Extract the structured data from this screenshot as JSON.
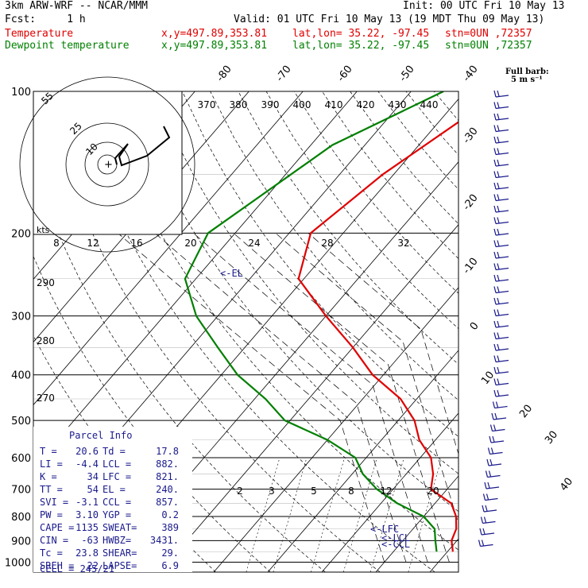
{
  "header": {
    "model": "3km ARW-WRF -- NCAR/MMM",
    "init": "Init: 00 UTC Fri 10 May 13",
    "fcst": "Fcst:     1 h",
    "valid": "Valid: 01 UTC Fri 10 May 13 (19 MDT Thu 09 May 13)",
    "temp_label": "Temperature",
    "dew_label": "Dewpoint temperature",
    "xy": "x,y=497.89,353.81",
    "latlon": "lat,lon= 35.22, -97.45",
    "stn": "stn=0UN ,72357"
  },
  "barb_legend": {
    "line1": "Full barb:",
    "line2": "5 m s⁻¹"
  },
  "parcel_info": {
    "title": "Parcel Info",
    "rows": [
      [
        "T  =",
        "20.6",
        "Td =",
        "17.8"
      ],
      [
        "LI =",
        "-4.4",
        "LCL =",
        "882."
      ],
      [
        "K  =",
        "34",
        "LFC =",
        "821."
      ],
      [
        "TT =",
        "54",
        "EL  =",
        "240."
      ],
      [
        "SVI =",
        "-3.1",
        "CCL =",
        "857."
      ],
      [
        "PW =",
        "3.10",
        "YGP =",
        "0.2"
      ],
      [
        "CAPE =",
        "1135",
        "SWEAT=",
        "389"
      ],
      [
        "CIN =",
        "-63",
        "HWBZ=",
        "3431."
      ],
      [
        "Tc =",
        "23.8",
        "SHEAR=",
        "29."
      ],
      [
        "SREH =",
        "22",
        "LAPSE=",
        "6.9"
      ]
    ],
    "cell": "CELL = 245/21"
  },
  "markers": {
    "el": "<-EL",
    "lfc": "<-LFC",
    "lcl": "<-LCL",
    "ccl": "<-CCL"
  },
  "hodo": {
    "kts": "kts",
    "rings": [
      "10",
      "25",
      "55"
    ]
  },
  "chart_data": {
    "type": "line",
    "title": "",
    "pressure_levels": [
      100,
      200,
      300,
      400,
      500,
      600,
      700,
      800,
      900,
      1000
    ],
    "isotherm_labels": [
      "-80",
      "-70",
      "-60",
      "-50",
      "-40",
      "-30",
      "-20",
      "-10",
      "0",
      "10",
      "20",
      "30",
      "40"
    ],
    "theta_labels": [
      "370",
      "380",
      "390",
      "400",
      "410",
      "420",
      "430",
      "440"
    ],
    "theta_labels_low": [
      "290",
      "280",
      "270"
    ],
    "mixing_ratio_labels": [
      "2",
      "3",
      "5",
      "8",
      "12",
      "20"
    ],
    "shear_scale_labels": [
      "8",
      "12",
      "16",
      "20",
      "24",
      "28",
      "32"
    ],
    "series": [
      {
        "name": "Temperature",
        "color": "#e00000",
        "points": [
          [
            100,
            -43
          ],
          [
            150,
            -52
          ],
          [
            200,
            -56
          ],
          [
            250,
            -51
          ],
          [
            300,
            -40
          ],
          [
            350,
            -30
          ],
          [
            400,
            -22
          ],
          [
            450,
            -13
          ],
          [
            500,
            -7
          ],
          [
            550,
            -3
          ],
          [
            600,
            2
          ],
          [
            650,
            5
          ],
          [
            700,
            7
          ],
          [
            750,
            13
          ],
          [
            800,
            16
          ],
          [
            850,
            18
          ],
          [
            900,
            19
          ],
          [
            950,
            21
          ]
        ]
      },
      {
        "name": "Dewpoint temperature",
        "color": "#008000",
        "points": [
          [
            100,
            -54
          ],
          [
            130,
            -66
          ],
          [
            200,
            -75
          ],
          [
            250,
            -72
          ],
          [
            300,
            -64
          ],
          [
            350,
            -55
          ],
          [
            400,
            -47
          ],
          [
            450,
            -38
          ],
          [
            500,
            -31
          ],
          [
            550,
            -20
          ],
          [
            600,
            -12
          ],
          [
            650,
            -8
          ],
          [
            700,
            -3
          ],
          [
            750,
            3
          ],
          [
            800,
            10
          ],
          [
            850,
            14
          ],
          [
            900,
            16
          ],
          [
            950,
            18
          ]
        ]
      }
    ]
  }
}
